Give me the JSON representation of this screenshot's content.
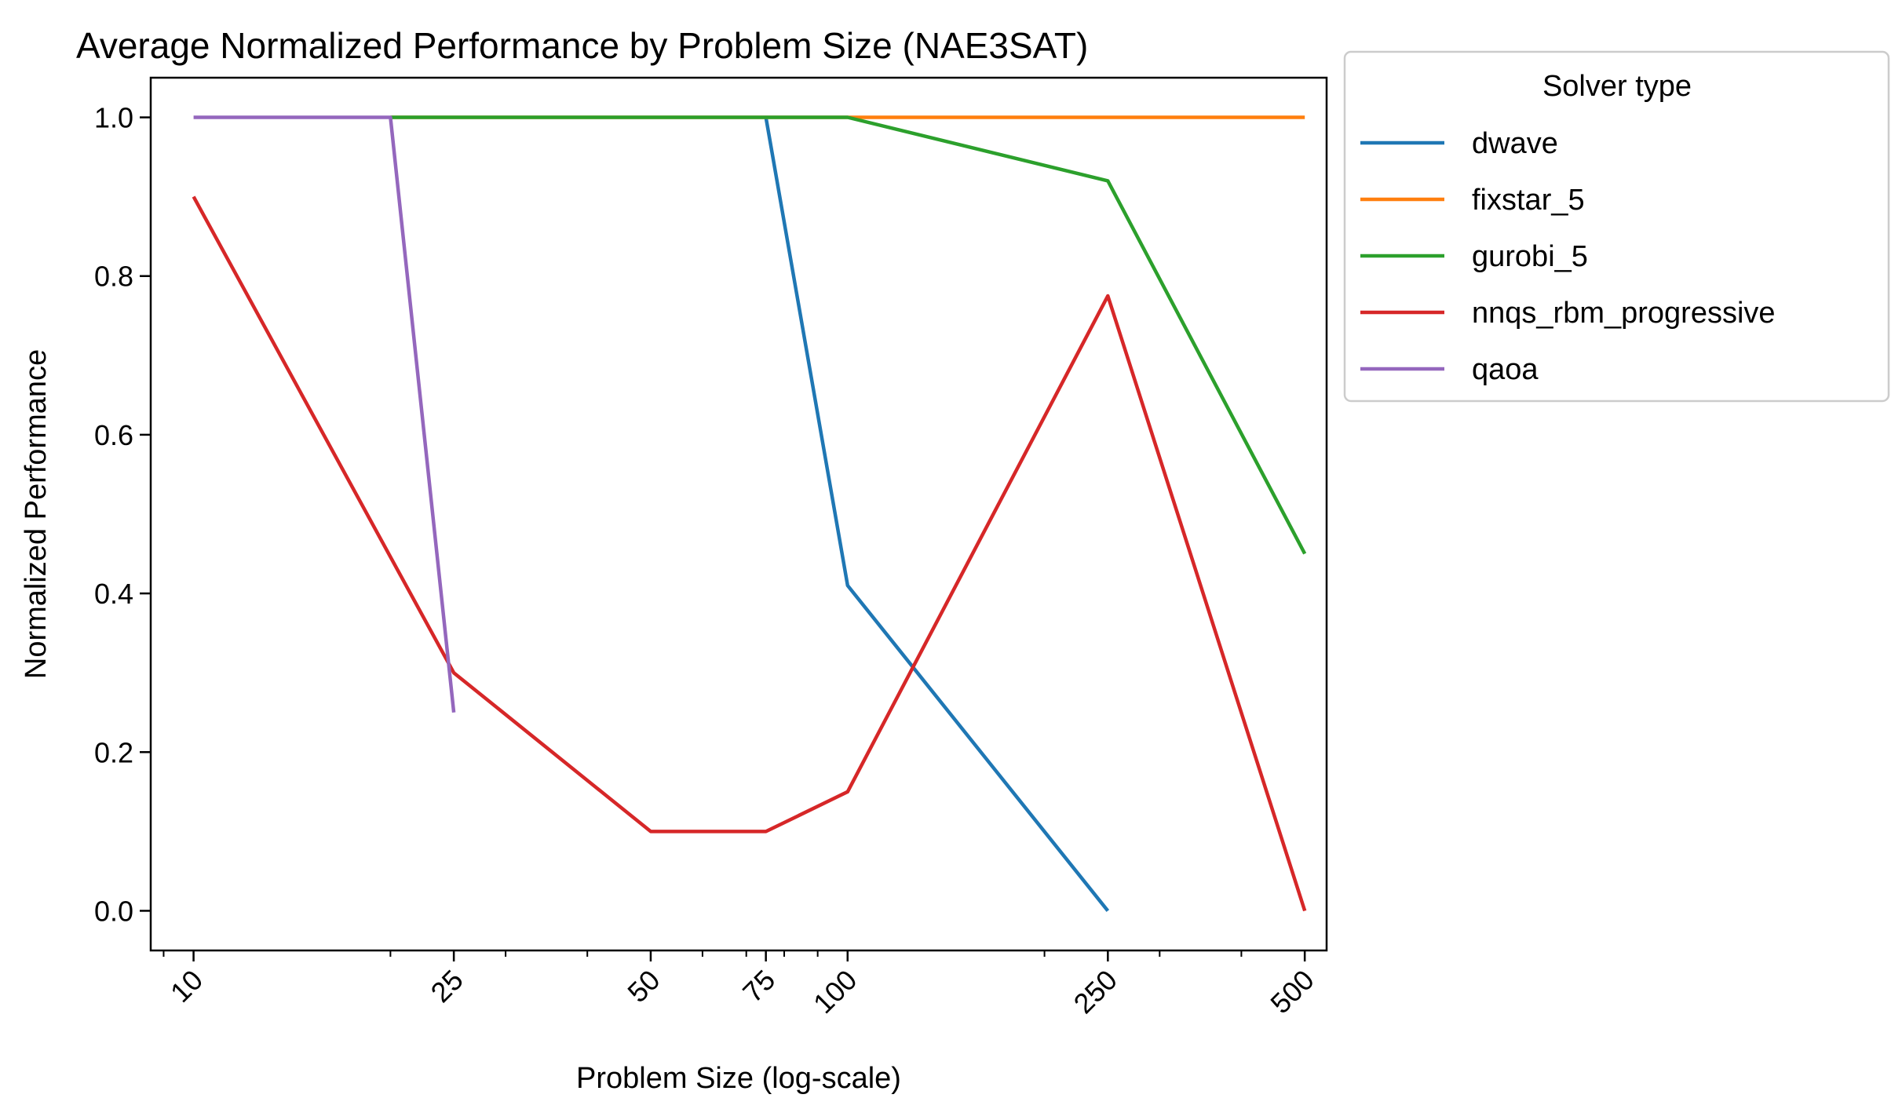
{
  "chart_data": {
    "type": "line",
    "title": "Average Normalized Performance by Problem Size (NAE3SAT)",
    "xlabel": "Problem Size (log-scale)",
    "ylabel": "Normalized Performance",
    "xscale": "log",
    "xlim": [
      8.6,
      540
    ],
    "ylim": [
      -0.05,
      1.05
    ],
    "xticks": [
      10,
      25,
      50,
      75,
      100,
      250,
      500
    ],
    "xtick_labels": [
      "10",
      "25",
      "50",
      "75",
      "100",
      "250",
      "500"
    ],
    "yticks": [
      0.0,
      0.2,
      0.4,
      0.6,
      0.8,
      1.0
    ],
    "ytick_labels": [
      "0.0",
      "0.2",
      "0.4",
      "0.6",
      "0.8",
      "1.0"
    ],
    "grid": false,
    "legend": {
      "title": "Solver type",
      "placement": "outside upper right"
    },
    "series": [
      {
        "name": "dwave",
        "color": "#1f77b4",
        "x": [
          75,
          100,
          250
        ],
        "y": [
          1.0,
          0.41,
          0.0
        ]
      },
      {
        "name": "fixstar_5",
        "color": "#ff7f0e",
        "x": [
          20,
          50,
          75,
          100,
          250,
          500
        ],
        "y": [
          1.0,
          1.0,
          1.0,
          1.0,
          1.0,
          1.0
        ]
      },
      {
        "name": "gurobi_5",
        "color": "#2ca02c",
        "x": [
          20,
          50,
          75,
          100,
          250,
          500
        ],
        "y": [
          1.0,
          1.0,
          1.0,
          1.0,
          0.92,
          0.45
        ]
      },
      {
        "name": "nnqs_rbm_progressive",
        "color": "#d62728",
        "x": [
          10,
          25,
          50,
          75,
          100,
          250,
          500
        ],
        "y": [
          0.9,
          0.3,
          0.1,
          0.1,
          0.15,
          0.775,
          0.0
        ]
      },
      {
        "name": "qaoa",
        "color": "#9467bd",
        "x": [
          10,
          20,
          25
        ],
        "y": [
          1.0,
          1.0,
          0.25
        ]
      }
    ]
  }
}
